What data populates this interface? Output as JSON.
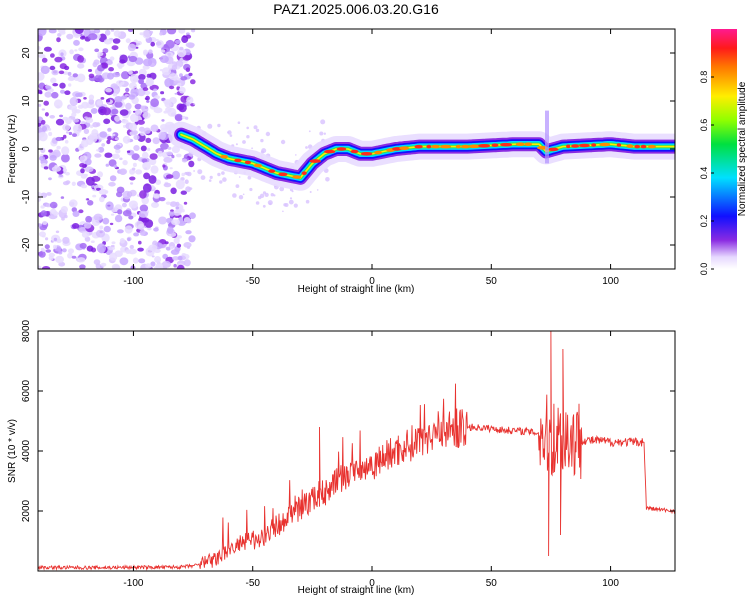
{
  "title": "PAZ1.2025.006.03.20.G16",
  "top_panel": {
    "xlabel": "Height of straight line (km)",
    "ylabel": "Frequency (Hz)",
    "xlim": [
      -140,
      127
    ],
    "ylim": [
      -25,
      25
    ],
    "x_ticks": [
      -100,
      -50,
      0,
      50,
      100
    ],
    "y_ticks": [
      20,
      10,
      0,
      -10,
      -20
    ]
  },
  "colorbar": {
    "label": "Normalized spectral amplitude",
    "ticks": [
      "0.0",
      "0.2",
      "0.4",
      "0.6",
      "0.8"
    ],
    "range": [
      0,
      1
    ]
  },
  "bottom_panel": {
    "xlabel": "Height of straight line (km)",
    "ylabel": "SNR (10 * v/v)",
    "xlim": [
      -140,
      127
    ],
    "ylim": [
      0,
      8000
    ],
    "x_ticks": [
      -100,
      -50,
      0,
      50,
      100
    ],
    "y_ticks": [
      8000,
      6000,
      4000,
      2000
    ]
  },
  "colors": {
    "snr_line": "#e8322f",
    "noise": "#8a2be2"
  },
  "chart_data": [
    {
      "type": "heatmap",
      "title": "PAZ1.2025.006.03.20.G16",
      "xlabel": "Height of straight line (km)",
      "ylabel": "Frequency (Hz)",
      "xlim": [
        -140,
        127
      ],
      "ylim": [
        -25,
        25
      ],
      "ridge": {
        "x": [
          -80,
          -75,
          -70,
          -65,
          -60,
          -55,
          -50,
          -45,
          -40,
          -35,
          -30,
          -25,
          -20,
          -15,
          -10,
          -5,
          0,
          10,
          20,
          40,
          60,
          70,
          73,
          80,
          100,
          110,
          127
        ],
        "y": [
          3,
          2,
          0.5,
          -1,
          -2,
          -2.5,
          -3,
          -4,
          -5,
          -5.5,
          -6,
          -3,
          -1,
          0,
          0,
          -1,
          -1,
          0,
          0.5,
          0.5,
          1,
          1,
          -0.5,
          0.5,
          1,
          0.5,
          0.5
        ]
      },
      "noise_region_x": [
        -140,
        -75
      ],
      "colorbar_label": "Normalized spectral amplitude",
      "colorbar_range": [
        0,
        1
      ]
    },
    {
      "type": "line",
      "xlabel": "Height of straight line (km)",
      "ylabel": "SNR (10 * v/v)",
      "xlim": [
        -140,
        127
      ],
      "ylim": [
        0,
        8000
      ],
      "series": [
        {
          "x": [
            -140,
            -120,
            -100,
            -80,
            -72,
            -65,
            -60,
            -55,
            -50,
            -45,
            -40,
            -35,
            -30,
            -25,
            -20,
            -15,
            -10,
            -5,
            0,
            5,
            10,
            15,
            20,
            25,
            30,
            35,
            40,
            45,
            50,
            55,
            60,
            65,
            70,
            74,
            76,
            78,
            80,
            85,
            90,
            95,
            100,
            105,
            110,
            114,
            115,
            120,
            127
          ],
          "y": [
            120,
            110,
            120,
            130,
            200,
            400,
            700,
            900,
            1000,
            1200,
            1500,
            1800,
            2100,
            2400,
            2600,
            3000,
            3200,
            3400,
            3550,
            3800,
            4000,
            4200,
            4400,
            4600,
            4700,
            4750,
            4800,
            4780,
            4750,
            4700,
            4680,
            4650,
            4600,
            4500,
            4400,
            4450,
            4500,
            4400,
            4350,
            4350,
            4300,
            4300,
            4300,
            4300,
            2100,
            2050,
            2000
          ]
        }
      ],
      "spikes": [
        {
          "x": -22,
          "y": 4800
        },
        {
          "x": 75,
          "y": 8000
        },
        {
          "x": 74,
          "y": 500
        },
        {
          "x": 80,
          "y": 7400
        },
        {
          "x": 79,
          "y": 1200
        }
      ]
    }
  ]
}
